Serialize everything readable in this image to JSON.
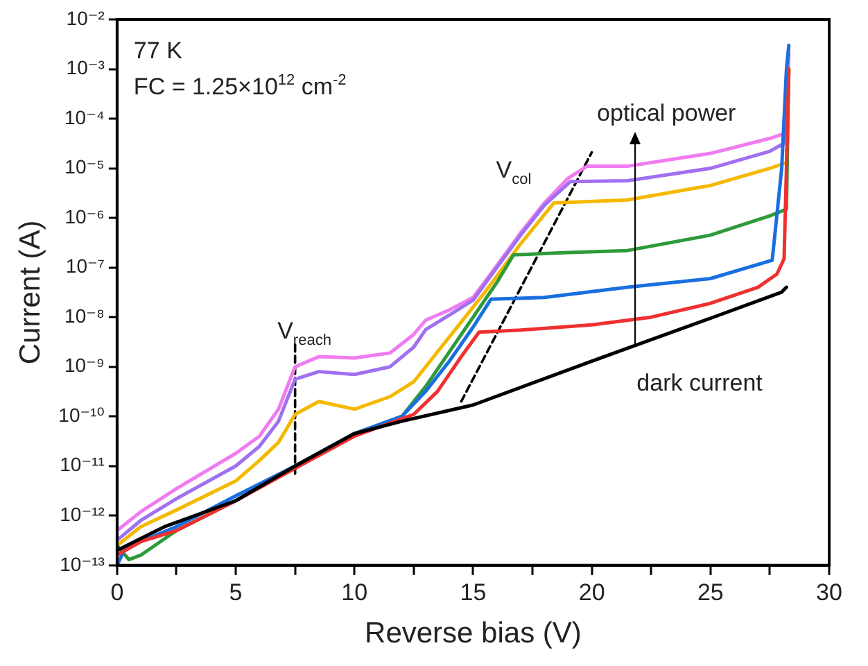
{
  "chart_data": {
    "type": "line",
    "xlabel": "Reverse bias (V)",
    "ylabel": "Current (A)",
    "log": "y",
    "grid": false,
    "legend": false,
    "marker": "none",
    "xlim": [
      0,
      30
    ],
    "xticks": [
      0,
      {
        "value": 2.5,
        "label": null
      },
      5,
      {
        "value": 7.5,
        "label": null
      },
      10,
      {
        "value": 12.5,
        "label": null
      },
      15,
      {
        "value": 17.5,
        "label": null
      },
      20,
      {
        "value": 22.5,
        "label": null
      },
      25,
      {
        "value": 27.5,
        "label": null
      },
      30
    ],
    "ylim": [
      1e-13,
      0.01
    ],
    "yticks": [
      {
        "value": 1e-13,
        "label": "10⁻¹³"
      },
      {
        "value": 1e-12,
        "label": "10⁻¹²"
      },
      {
        "value": 1e-11,
        "label": "10⁻¹¹"
      },
      {
        "value": 1e-10,
        "label": "10⁻¹⁰"
      },
      {
        "value": 1e-09,
        "label": "10⁻⁹"
      },
      {
        "value": 1e-08,
        "label": "10⁻⁸"
      },
      {
        "value": 1e-07,
        "label": "10⁻⁷"
      },
      {
        "value": 1e-06,
        "label": "10⁻⁶"
      },
      {
        "value": 1e-05,
        "label": "10⁻⁵"
      },
      {
        "value": 0.0001,
        "label": "10⁻⁴"
      },
      {
        "value": 0.001,
        "label": "10⁻³"
      },
      {
        "value": 0.01,
        "label": "10⁻²"
      }
    ],
    "series": [
      {
        "color": "#000000",
        "x": [
          0,
          2,
          5,
          7.5,
          10,
          12,
          15,
          20,
          25,
          28,
          28.2
        ],
        "values": [
          2e-13,
          6e-13,
          2e-12,
          1e-11,
          4.5e-11,
          8e-11,
          1.7e-10,
          1.3e-09,
          9.5e-09,
          3.2e-08,
          4e-08
        ]
      },
      {
        "color": "#f03030",
        "x": [
          0,
          1,
          2.5,
          5,
          7.5,
          10,
          12.5,
          13.5,
          14.5,
          15.25,
          17,
          20,
          22.5,
          25,
          27,
          27.8,
          28.1,
          28.2,
          28.3
        ],
        "values": [
          1.6e-13,
          3e-13,
          5e-13,
          2e-12,
          9e-12,
          4e-11,
          1.1e-10,
          3.2e-10,
          1.6e-09,
          5e-09,
          5.5e-09,
          7e-09,
          1e-08,
          1.9e-08,
          4e-08,
          7.4e-08,
          1.5e-07,
          1e-05,
          0.001
        ]
      },
      {
        "color": "#1a6fe0",
        "x": [
          0,
          0.3,
          1,
          2.5,
          5,
          7.5,
          10,
          12,
          13,
          14,
          15,
          15.75,
          18,
          21.5,
          25,
          27.6,
          28,
          28.2,
          28.3
        ],
        "values": [
          1e-13,
          2e-13,
          3e-13,
          6e-13,
          2.5e-12,
          1e-11,
          4.5e-11,
          1e-10,
          3.2e-10,
          1.3e-09,
          6.3e-09,
          2.3e-08,
          2.5e-08,
          4e-08,
          6e-08,
          1.4e-07,
          1e-05,
          0.001,
          0.003
        ]
      },
      {
        "color": "#2e9a3a",
        "x": [
          0,
          0.5,
          1,
          2.5,
          5,
          7.5,
          10,
          12,
          13,
          14,
          15,
          16,
          16.7,
          19,
          21.5,
          25,
          27.5,
          28.2,
          28.3
        ],
        "values": [
          2.5e-13,
          1.3e-13,
          1.6e-13,
          5e-13,
          2e-12,
          1e-11,
          4.5e-11,
          1e-10,
          4e-10,
          2e-09,
          1e-08,
          5e-08,
          1.8e-07,
          2e-07,
          2.2e-07,
          4.5e-07,
          1.1e-06,
          1.5e-06,
          0.001
        ]
      },
      {
        "color": "#f5b800",
        "x": [
          0,
          1,
          2.5,
          5,
          6,
          6.8,
          7.5,
          8.5,
          10,
          11.5,
          12.5,
          13.5,
          14.5,
          15.5,
          17,
          18.4,
          21.5,
          25,
          27.5,
          28.2,
          28.3
        ],
        "values": [
          2.5e-13,
          6e-13,
          1.3e-12,
          5e-12,
          1.3e-11,
          3e-11,
          1.1e-10,
          2e-10,
          1.4e-10,
          2.5e-10,
          5e-10,
          2e-09,
          8e-09,
          3.2e-08,
          3e-07,
          2e-06,
          2.3e-06,
          4.5e-06,
          1e-05,
          1.3e-05,
          0.001
        ]
      },
      {
        "color": "#a070f0",
        "x": [
          0,
          1,
          2.5,
          5,
          6,
          6.8,
          7.5,
          8.5,
          10,
          11.5,
          12.5,
          13,
          14,
          15,
          16,
          17,
          18,
          19.1,
          21.5,
          25,
          27.5,
          28.1,
          28.3
        ],
        "values": [
          3.2e-13,
          8e-13,
          2.2e-12,
          1e-11,
          2.5e-11,
          8e-11,
          5.6e-10,
          8e-10,
          7e-10,
          1e-09,
          2.5e-09,
          5.6e-09,
          1.1e-08,
          2.2e-08,
          1e-07,
          4.5e-07,
          1.8e-06,
          5.4e-06,
          5.6e-06,
          1e-05,
          2.2e-05,
          3.2e-05,
          0.002
        ]
      },
      {
        "color": "#f07cf0",
        "x": [
          0,
          1,
          2.5,
          5,
          6,
          6.8,
          7.5,
          8.5,
          10,
          11.5,
          12.5,
          13,
          14,
          15,
          16,
          17,
          18,
          19,
          19.8,
          21.5,
          25,
          27.5,
          28.1,
          28.3
        ],
        "values": [
          5e-13,
          1.2e-12,
          3.5e-12,
          1.8e-11,
          4e-11,
          1.4e-10,
          1e-09,
          1.6e-09,
          1.5e-09,
          1.9e-09,
          4.5e-09,
          8.7e-09,
          1.4e-08,
          2.5e-08,
          1.1e-07,
          5e-07,
          2e-06,
          6.3e-06,
          1.1e-05,
          1.1e-05,
          2e-05,
          4e-05,
          5e-05,
          0.003
        ]
      },
      {
        "color": "#000000",
        "line_style": "dashed",
        "x": [
          7.5,
          7.5
        ],
        "values": [
          7e-12,
          3.2e-09
        ]
      },
      {
        "color": "#000000",
        "line_style": "dashed",
        "x": [
          14.5,
          20
        ],
        "values": [
          2e-10,
          2.1e-05
        ]
      }
    ],
    "annotations": [
      "77 K",
      "FC = 1.25×10$^{12}$ cm$^{-2}$",
      "V$_{reach}$",
      "V$_{col}$",
      {
        "text": "optical power",
        "x": 21.8,
        "y": 2.6e-09
      },
      "dark current"
    ]
  }
}
